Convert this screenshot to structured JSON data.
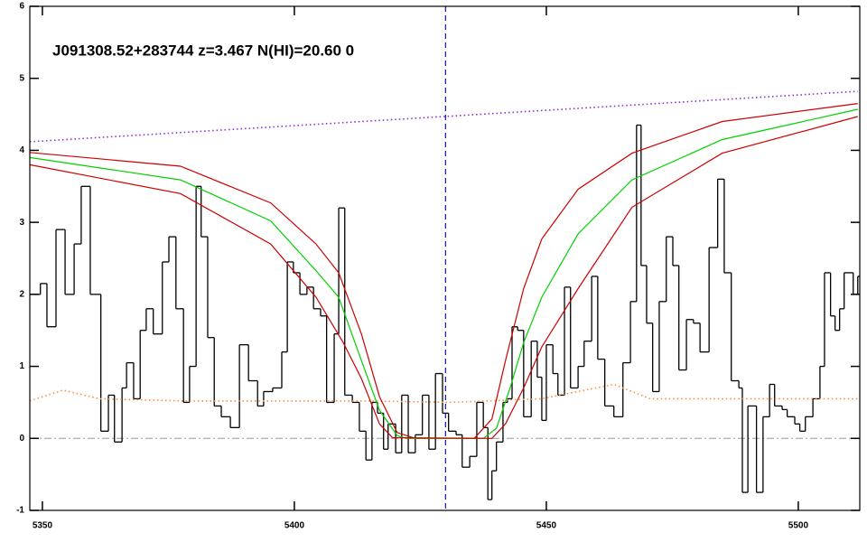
{
  "chart_data": {
    "type": "line",
    "title": "J091308.52+283744 z=3.467 N(HI)=20.60 0",
    "xlim": [
      5347.5,
      5512.2
    ],
    "ylim": [
      -1,
      6
    ],
    "xticks": [
      5350,
      5400,
      5450,
      5500
    ],
    "yticks": [
      -1,
      0,
      1,
      2,
      3,
      4,
      5,
      6
    ],
    "zero_line": 0,
    "marker_x": 5430,
    "series": [
      {
        "style": "step",
        "color": "#000000",
        "x": [
          5347.9,
          5349.6,
          5350.9,
          5352.7,
          5354.5,
          5356.3,
          5357.7,
          5359.5,
          5361.6,
          5363.1,
          5364.3,
          5365.8,
          5366.7,
          5368.1,
          5369.4,
          5370.6,
          5372.0,
          5373.8,
          5375.1,
          5376.5,
          5378.0,
          5379.2,
          5380.5,
          5381.5,
          5382.8,
          5384.1,
          5385.5,
          5387.3,
          5389.1,
          5390.9,
          5392.7,
          5393.9,
          5395.7,
          5397.5,
          5398.6,
          5399.8,
          5401.1,
          5402.5,
          5403.8,
          5405.2,
          5406.4,
          5407.9,
          5408.8,
          5410.0,
          5411.5,
          5412.9,
          5414.2,
          5415.4,
          5416.5,
          5417.7,
          5418.6,
          5420.1,
          5421.3,
          5422.6,
          5424.0,
          5425.4,
          5426.7,
          5428.0,
          5429.4,
          5430.6,
          5432.1,
          5433.3,
          5434.8,
          5436.2,
          5437.5,
          5438.4,
          5439.2,
          5440.1,
          5441.4,
          5442.3,
          5443.2,
          5444.3,
          5445.5,
          5447.0,
          5448.2,
          5449.1,
          5450.0,
          5451.3,
          5452.3,
          5453.6,
          5454.8,
          5456.3,
          5457.5,
          5459.0,
          5460.2,
          5461.6,
          5463.4,
          5465.2,
          5466.7,
          5467.9,
          5468.8,
          5469.9,
          5471.1,
          5472.4,
          5473.8,
          5475.1,
          5476.3,
          5477.8,
          5479.2,
          5480.5,
          5482.3,
          5484.0,
          5485.3,
          5486.7,
          5488.2,
          5488.9,
          5490.0,
          5491.7,
          5493.0,
          5494.3,
          5495.3,
          5496.8,
          5497.8,
          5499.3,
          5500.3,
          5501.4,
          5502.9,
          5504.3,
          5505.2,
          5506.4,
          5507.3,
          5508.2,
          5509.1,
          5510.9,
          5511.8
        ],
        "values": [
          2.0,
          2.15,
          1.55,
          2.9,
          2.0,
          2.7,
          3.5,
          2.0,
          0.1,
          0.6,
          -0.05,
          0.7,
          1.05,
          0.55,
          1.5,
          1.8,
          1.45,
          2.45,
          2.8,
          1.8,
          0.5,
          1.0,
          3.5,
          2.8,
          1.4,
          0.45,
          0.3,
          0.15,
          1.3,
          0.8,
          0.45,
          0.65,
          0.7,
          1.2,
          2.45,
          2.3,
          2.0,
          2.1,
          1.8,
          1.7,
          0.5,
          1.45,
          3.2,
          0.6,
          0.5,
          0.1,
          -0.3,
          0.5,
          0.35,
          -0.15,
          0.2,
          -0.2,
          0.6,
          -0.2,
          0.05,
          0.6,
          -0.15,
          0.9,
          0.35,
          0.1,
          0.05,
          -0.4,
          -0.25,
          0.5,
          0.15,
          -0.85,
          -0.45,
          -0.05,
          0.5,
          0.55,
          1.55,
          1.5,
          0.3,
          1.35,
          0.85,
          0.25,
          1.3,
          0.9,
          0.6,
          2.1,
          0.7,
          1.0,
          1.35,
          2.25,
          1.1,
          0.45,
          0.3,
          1.05,
          1.9,
          4.35,
          2.4,
          1.6,
          0.65,
          1.9,
          2.8,
          2.4,
          0.95,
          1.65,
          1.6,
          1.2,
          2.65,
          3.6,
          2.3,
          0.8,
          0.7,
          -0.75,
          0.45,
          -0.75,
          0.3,
          0.75,
          0.45,
          0.4,
          0.3,
          0.2,
          0.1,
          0.3,
          0.55,
          1.0,
          2.3,
          1.7,
          1.5,
          1.8,
          2.3,
          2.0,
          2.25
        ]
      },
      {
        "style": "dotted",
        "color": "#ff8c40",
        "x": [
          5347.5,
          5354.1,
          5361.3,
          5377.4,
          5413.3,
          5431.2,
          5449.1,
          5463.4,
          5470.6,
          5511.8
        ],
        "values": [
          0.52,
          0.67,
          0.55,
          0.52,
          0.52,
          0.5,
          0.55,
          0.75,
          0.55,
          0.55
        ]
      },
      {
        "style": "dotted",
        "color": "#8a2be2",
        "x": [
          5347.5,
          5511.8
        ],
        "values": [
          4.12,
          4.82
        ]
      },
      {
        "style": "solid",
        "color": "#cc0000",
        "x": [
          5347.5,
          5377.4,
          5395.3,
          5404.3,
          5408.8,
          5413.3,
          5416.9,
          5420.4,
          5424.0,
          5435.7,
          5439.2,
          5441.9,
          5445.5,
          5449.1,
          5456.3,
          5467.0,
          5484.9,
          5511.8
        ],
        "values": [
          3.97,
          3.78,
          3.27,
          2.7,
          2.3,
          1.45,
          0.58,
          0.08,
          0,
          0,
          0.27,
          1.08,
          2.08,
          2.77,
          3.46,
          3.96,
          4.4,
          4.65
        ]
      },
      {
        "style": "solid",
        "color": "#00d000",
        "x": [
          5347.5,
          5377.4,
          5395.3,
          5404.3,
          5408.8,
          5413.3,
          5416.9,
          5420.4,
          5422.2,
          5437.5,
          5440.1,
          5442.8,
          5445.5,
          5449.1,
          5456.3,
          5467.0,
          5484.9,
          5511.8
        ],
        "values": [
          3.9,
          3.59,
          3.02,
          2.33,
          1.96,
          1.08,
          0.39,
          0.04,
          0,
          0,
          0.14,
          0.7,
          1.33,
          1.96,
          2.84,
          3.59,
          4.15,
          4.57
        ]
      },
      {
        "style": "solid",
        "color": "#cc0000",
        "x": [
          5347.5,
          5377.4,
          5395.3,
          5404.3,
          5409.7,
          5413.3,
          5416.9,
          5419.5,
          5439.2,
          5441.9,
          5445.5,
          5449.1,
          5456.3,
          5467.0,
          5484.9,
          5511.8
        ],
        "values": [
          3.8,
          3.4,
          2.7,
          1.96,
          1.33,
          0.83,
          0.2,
          0.01,
          0,
          0.2,
          0.7,
          1.27,
          2.08,
          3.21,
          3.96,
          4.47
        ]
      }
    ]
  }
}
